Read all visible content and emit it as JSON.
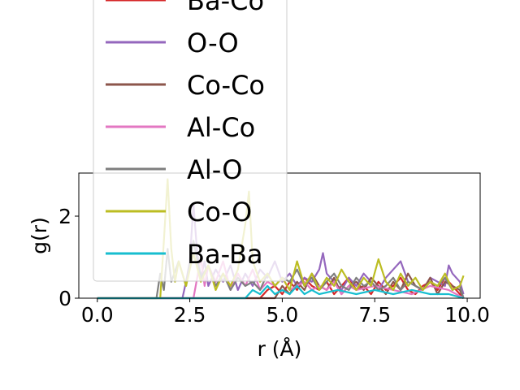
{
  "chart_data": {
    "type": "line",
    "title": "",
    "xlabel": "r (Å)",
    "ylabel": "g(r)",
    "xlim": [
      -0.5,
      10.35
    ],
    "ylim": [
      0,
      3.05
    ],
    "xticks": [
      0.0,
      2.5,
      5.0,
      7.5,
      10.0
    ],
    "xtick_labels": [
      "0.0",
      "2.5",
      "5.0",
      "7.5",
      "10.0"
    ],
    "yticks": [
      0,
      2
    ],
    "ytick_labels": [
      "0",
      "2"
    ],
    "grid": false,
    "legend_placement": "upper-left",
    "series": [
      {
        "name": "Ba-Co",
        "color": "#d62728",
        "x": [
          0,
          4.4,
          4.6,
          4.8,
          5.0,
          5.2,
          5.4,
          5.6,
          5.8,
          6.0,
          6.2,
          6.4,
          6.6,
          6.8,
          7.0,
          7.2,
          7.4,
          7.6,
          7.8,
          8.0,
          8.2,
          8.4,
          8.6,
          8.8,
          9.0,
          9.2,
          9.4,
          9.6,
          9.8,
          9.9
        ],
        "y": [
          0,
          0,
          0.2,
          0.3,
          0.1,
          0.4,
          0.2,
          0.5,
          0.3,
          0.2,
          0.4,
          0.1,
          0.3,
          0.5,
          0.2,
          0.3,
          0.1,
          0.4,
          0.2,
          0.3,
          0.5,
          0.2,
          0.1,
          0.3,
          0.4,
          0.2,
          0.5,
          0.3,
          0.1,
          0
        ]
      },
      {
        "name": "O-O",
        "color": "#9467bd",
        "x": [
          0,
          2.3,
          2.4,
          2.5,
          2.6,
          2.7,
          2.8,
          2.9,
          3.0,
          3.2,
          3.4,
          3.6,
          3.8,
          4.0,
          4.2,
          4.4,
          4.6,
          4.8,
          5.0,
          5.2,
          5.4,
          5.6,
          5.8,
          6.0,
          6.1,
          6.2,
          6.4,
          6.6,
          6.8,
          7.0,
          7.2,
          7.4,
          7.6,
          7.8,
          8.0,
          8.2,
          8.4,
          8.6,
          8.8,
          9.0,
          9.2,
          9.4,
          9.5,
          9.6,
          9.8,
          9.9
        ],
        "y": [
          0,
          0,
          0.4,
          0.9,
          2.3,
          1.1,
          0.5,
          0.9,
          0.3,
          0.7,
          0.4,
          0.8,
          0.2,
          0.6,
          0.3,
          0.7,
          0.5,
          0.9,
          0.4,
          0.6,
          0.3,
          0.5,
          0.4,
          0.7,
          1.1,
          0.6,
          0.4,
          0.2,
          0.5,
          0.3,
          0.6,
          0.4,
          0.2,
          0.5,
          0.7,
          0.9,
          0.4,
          0.3,
          0.2,
          0.5,
          0.4,
          0.3,
          0.8,
          0.6,
          0.4,
          0.1
        ]
      },
      {
        "name": "Co-Co",
        "color": "#8c564b",
        "x": [
          0,
          4.8,
          5.0,
          5.2,
          5.4,
          5.6,
          5.8,
          6.0,
          6.2,
          6.4,
          6.6,
          6.8,
          7.0,
          7.2,
          7.4,
          7.6,
          7.8,
          8.0,
          8.2,
          8.4,
          8.6,
          8.8,
          9.0,
          9.2,
          9.4,
          9.6,
          9.8,
          9.9
        ],
        "y": [
          0,
          0,
          0.3,
          0.1,
          0.4,
          0.2,
          0.6,
          0.3,
          0.2,
          0.5,
          0.1,
          0.3,
          0.4,
          0.2,
          0.5,
          0.3,
          0.1,
          0.4,
          0.2,
          0.6,
          0.3,
          0.2,
          0.5,
          0.1,
          0.4,
          0.3,
          0.2,
          0
        ]
      },
      {
        "name": "Al-Co",
        "color": "#e377c2",
        "x": [
          0,
          2.6,
          2.7,
          2.8,
          2.9,
          3.0,
          3.2,
          3.4,
          3.6,
          3.8,
          4.0,
          4.2,
          4.4,
          4.6,
          4.8,
          5.0,
          5.2,
          5.4,
          5.6,
          5.8,
          6.0,
          6.2,
          6.4,
          6.6,
          6.8,
          7.0,
          7.5,
          8.0,
          8.5,
          9.0,
          9.5,
          9.9
        ],
        "y": [
          0,
          0,
          0.5,
          1.0,
          0.3,
          0.8,
          0.4,
          0.9,
          0.2,
          0.6,
          0.3,
          0.7,
          0.2,
          0.4,
          0.3,
          0.5,
          0.2,
          0.3,
          0.4,
          0.2,
          0.3,
          0.2,
          0.4,
          0.1,
          0.3,
          0.2,
          0.3,
          0.2,
          0.1,
          0.3,
          0.2,
          0
        ]
      },
      {
        "name": "Al-O",
        "color": "#7f7f7f",
        "x": [
          0,
          1.6,
          1.7,
          1.8,
          1.9,
          2.0,
          2.2,
          2.4,
          2.6,
          2.8,
          3.0,
          3.2,
          3.4,
          3.6,
          3.8,
          4.0,
          4.2,
          4.4,
          4.6,
          4.8,
          5.0,
          5.2,
          5.4,
          5.6,
          5.8,
          6.0,
          6.2,
          6.4,
          6.6,
          6.8,
          7.0,
          7.2,
          7.4,
          7.6,
          7.8,
          8.0,
          8.2,
          8.4,
          8.6,
          8.8,
          9.0,
          9.2,
          9.4,
          9.6,
          9.8,
          9.9
        ],
        "y": [
          0,
          0,
          0.6,
          0.2,
          1.2,
          0.4,
          0.9,
          0.3,
          1.4,
          0.5,
          0.8,
          0.3,
          0.6,
          0.2,
          0.5,
          0.3,
          0.4,
          0.2,
          0.6,
          0.3,
          0.5,
          0.4,
          0.7,
          0.3,
          0.5,
          0.2,
          0.4,
          0.6,
          0.3,
          0.2,
          0.5,
          0.3,
          0.4,
          0.2,
          0.3,
          0.5,
          0.2,
          0.4,
          0.3,
          0.2,
          0.4,
          0.3,
          0.5,
          0.2,
          0.3,
          0
        ]
      },
      {
        "name": "Co-O",
        "color": "#bcbd22",
        "x": [
          0,
          1.7,
          1.8,
          1.9,
          2.0,
          2.1,
          2.2,
          2.4,
          2.6,
          2.8,
          3.0,
          3.2,
          3.4,
          3.6,
          3.8,
          4.0,
          4.1,
          4.2,
          4.4,
          4.6,
          4.8,
          5.0,
          5.2,
          5.4,
          5.6,
          5.8,
          6.0,
          6.2,
          6.4,
          6.6,
          6.8,
          7.0,
          7.2,
          7.4,
          7.6,
          7.8,
          8.0,
          8.2,
          8.4,
          8.6,
          8.8,
          9.0,
          9.2,
          9.4,
          9.6,
          9.8,
          9.9
        ],
        "y": [
          0,
          0,
          1.4,
          2.9,
          1.2,
          0.4,
          0.9,
          0.3,
          1.1,
          0.4,
          0.8,
          0.2,
          0.6,
          0.3,
          0.7,
          1.8,
          2.6,
          0.9,
          0.4,
          0.6,
          0.3,
          0.5,
          0.2,
          0.9,
          0.3,
          0.6,
          0.2,
          0.5,
          0.3,
          0.7,
          0.4,
          0.2,
          0.5,
          0.3,
          0.95,
          0.4,
          0.2,
          0.6,
          0.3,
          0.5,
          0.2,
          0.4,
          0.3,
          0.6,
          0.2,
          0.3,
          0.55
        ]
      },
      {
        "name": "Ba-Ba",
        "color": "#17becf",
        "x": [
          0,
          4.0,
          4.2,
          4.4,
          4.6,
          4.8,
          5.0,
          5.2,
          5.4,
          5.6,
          5.8,
          6.0,
          6.5,
          7.0,
          7.5,
          8.0,
          8.5,
          9.0,
          9.5,
          9.9
        ],
        "y": [
          0,
          0,
          0.2,
          0.1,
          0.3,
          0.1,
          0.2,
          0.1,
          0.3,
          0.1,
          0.2,
          0.1,
          0.2,
          0.1,
          0.2,
          0.1,
          0.2,
          0.1,
          0.1,
          0
        ]
      }
    ]
  }
}
